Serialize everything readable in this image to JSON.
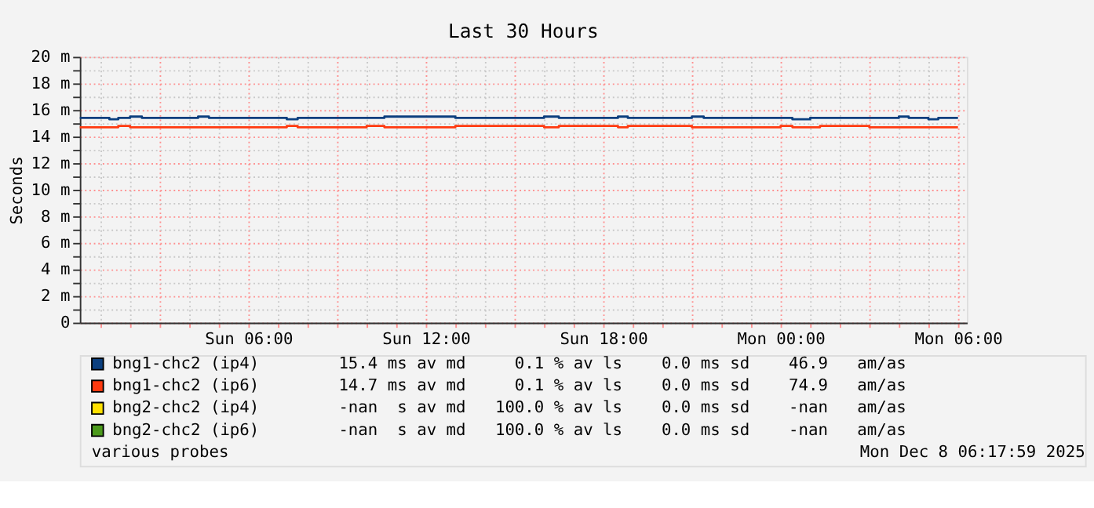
{
  "chart_data": {
    "type": "step",
    "title": "Last 30 Hours",
    "ylabel": "Seconds",
    "xlim": [
      "2025-12-07T00:18",
      "2025-12-08T06:18"
    ],
    "xticks": [
      {
        "value": "2025-12-07T01:00",
        "label": null
      },
      {
        "value": "2025-12-07T02:00",
        "label": null
      },
      {
        "value": "2025-12-07T03:00",
        "label": null
      },
      {
        "value": "2025-12-07T04:00",
        "label": null
      },
      {
        "value": "2025-12-07T05:00",
        "label": null
      },
      {
        "value": "2025-12-07T06:00",
        "label": "Sun 06:00"
      },
      {
        "value": "2025-12-07T07:00",
        "label": null
      },
      {
        "value": "2025-12-07T08:00",
        "label": null
      },
      {
        "value": "2025-12-07T09:00",
        "label": null
      },
      {
        "value": "2025-12-07T10:00",
        "label": null
      },
      {
        "value": "2025-12-07T11:00",
        "label": null
      },
      {
        "value": "2025-12-07T12:00",
        "label": "Sun 12:00"
      },
      {
        "value": "2025-12-07T13:00",
        "label": null
      },
      {
        "value": "2025-12-07T14:00",
        "label": null
      },
      {
        "value": "2025-12-07T15:00",
        "label": null
      },
      {
        "value": "2025-12-07T16:00",
        "label": null
      },
      {
        "value": "2025-12-07T17:00",
        "label": null
      },
      {
        "value": "2025-12-07T18:00",
        "label": "Sun 18:00"
      },
      {
        "value": "2025-12-07T19:00",
        "label": null
      },
      {
        "value": "2025-12-07T20:00",
        "label": null
      },
      {
        "value": "2025-12-07T21:00",
        "label": null
      },
      {
        "value": "2025-12-07T22:00",
        "label": null
      },
      {
        "value": "2025-12-07T23:00",
        "label": null
      },
      {
        "value": "2025-12-08T00:00",
        "label": "Mon 00:00"
      },
      {
        "value": "2025-12-08T01:00",
        "label": null
      },
      {
        "value": "2025-12-08T02:00",
        "label": null
      },
      {
        "value": "2025-12-08T03:00",
        "label": null
      },
      {
        "value": "2025-12-08T04:00",
        "label": null
      },
      {
        "value": "2025-12-08T05:00",
        "label": null
      },
      {
        "value": "2025-12-08T06:00",
        "label": "Mon 06:00"
      }
    ],
    "ylim": [
      0,
      20
    ],
    "yticks": [
      {
        "value": 0,
        "label": "0"
      },
      {
        "value": 1,
        "label": null
      },
      {
        "value": 2,
        "label": "2 m"
      },
      {
        "value": 3,
        "label": null
      },
      {
        "value": 4,
        "label": "4 m"
      },
      {
        "value": 5,
        "label": null
      },
      {
        "value": 6,
        "label": "6 m"
      },
      {
        "value": 7,
        "label": null
      },
      {
        "value": 8,
        "label": "8 m"
      },
      {
        "value": 9,
        "label": null
      },
      {
        "value": 10,
        "label": "10 m"
      },
      {
        "value": 11,
        "label": null
      },
      {
        "value": 12,
        "label": "12 m"
      },
      {
        "value": 13,
        "label": null
      },
      {
        "value": 14,
        "label": "14 m"
      },
      {
        "value": 15,
        "label": null
      },
      {
        "value": 16,
        "label": "16 m"
      },
      {
        "value": 17,
        "label": null
      },
      {
        "value": 18,
        "label": "18 m"
      },
      {
        "value": 19,
        "label": null
      },
      {
        "value": 20,
        "label": "20 m"
      }
    ],
    "grid": true,
    "legend": "bottom",
    "x": [
      "2025-12-07T00:18",
      "2025-12-07T01:18",
      "2025-12-07T01:36",
      "2025-12-07T02:00",
      "2025-12-07T02:24",
      "2025-12-07T04:18",
      "2025-12-07T04:40",
      "2025-12-07T07:18",
      "2025-12-07T07:40",
      "2025-12-07T10:00",
      "2025-12-07T10:36",
      "2025-12-07T13:00",
      "2025-12-07T16:00",
      "2025-12-07T16:30",
      "2025-12-07T18:30",
      "2025-12-07T18:50",
      "2025-12-07T21:00",
      "2025-12-07T21:24",
      "2025-12-08T00:00",
      "2025-12-08T00:24",
      "2025-12-08T01:00",
      "2025-12-08T01:20",
      "2025-12-08T03:00",
      "2025-12-08T04:00",
      "2025-12-08T04:20",
      "2025-12-08T05:00",
      "2025-12-08T05:20",
      "2025-12-08T06:00"
    ],
    "series": [
      {
        "name": "bng1-chc2 (ip4)",
        "color": "#0b3f7f",
        "values": [
          15.4,
          15.3,
          15.4,
          15.5,
          15.4,
          15.5,
          15.4,
          15.3,
          15.4,
          15.4,
          15.5,
          15.4,
          15.5,
          15.4,
          15.5,
          15.4,
          15.5,
          15.4,
          15.4,
          15.3,
          15.4,
          15.4,
          15.4,
          15.5,
          15.4,
          15.3,
          15.4,
          15.4
        ]
      },
      {
        "name": "bng1-chc2 (ip6)",
        "color": "#ff3a10",
        "values": [
          14.7,
          14.7,
          14.8,
          14.7,
          14.7,
          14.7,
          14.7,
          14.8,
          14.7,
          14.8,
          14.7,
          14.8,
          14.7,
          14.8,
          14.7,
          14.8,
          14.7,
          14.7,
          14.8,
          14.7,
          14.7,
          14.8,
          14.7,
          14.7,
          14.7,
          14.7,
          14.7,
          14.7
        ]
      },
      {
        "name": "bng2-chc2 (ip4)",
        "color": "#ffe000",
        "values": [
          null,
          null,
          null,
          null,
          null,
          null,
          null,
          null,
          null,
          null,
          null,
          null,
          null,
          null,
          null,
          null,
          null,
          null,
          null,
          null,
          null,
          null,
          null,
          null,
          null,
          null,
          null,
          null
        ]
      },
      {
        "name": "bng2-chc2 (ip6)",
        "color": "#4c9a1c",
        "values": [
          null,
          null,
          null,
          null,
          null,
          null,
          null,
          null,
          null,
          null,
          null,
          null,
          null,
          null,
          null,
          null,
          null,
          null,
          null,
          null,
          null,
          null,
          null,
          null,
          null,
          null,
          null,
          null
        ]
      }
    ],
    "annotations": [
      "15.4 ms av md     0.1 % av ls    0.0 ms sd    46.9   am/as",
      "14.7 ms av md     0.1 % av ls    0.0 ms sd    74.9   am/as",
      "-nan  s av md   100.0 % av ls    0.0 ms sd    -nan   am/as",
      "-nan  s av md   100.0 % av ls    0.0 ms sd    -nan   am/as",
      "various probes",
      "Mon Dec  8 06:17:59 2025"
    ]
  }
}
